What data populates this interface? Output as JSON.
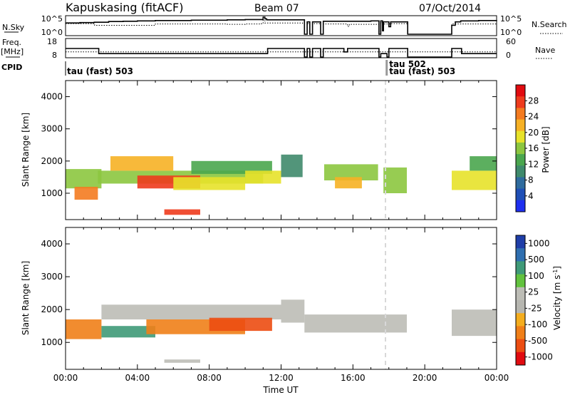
{
  "header": {
    "station": "Kapuskasing (fitACF)",
    "beam": "Beam 07",
    "date": "07/Oct/2014"
  },
  "noise_panel": {
    "left_label": "N.Sky",
    "right_label": "N.Search",
    "left_ticks": [
      "10^5",
      "10^0"
    ],
    "right_ticks": [
      "10^5",
      "10^0"
    ],
    "ylim_log10": [
      0,
      5
    ],
    "sky_series": [
      [
        0.0,
        3.3
      ],
      [
        0.8,
        3.4
      ],
      [
        1.6,
        3.5
      ],
      [
        2.4,
        3.7
      ],
      [
        3.2,
        3.8
      ],
      [
        4.0,
        3.9
      ],
      [
        5.0,
        4.0
      ],
      [
        6.0,
        4.0
      ],
      [
        7.0,
        4.1
      ],
      [
        8.0,
        4.1
      ],
      [
        9.0,
        4.2
      ],
      [
        10.0,
        4.3
      ],
      [
        10.9,
        4.3
      ],
      [
        11.0,
        5.0
      ],
      [
        11.1,
        4.5
      ],
      [
        11.2,
        4.2
      ],
      [
        12.0,
        4.2
      ],
      [
        13.2,
        4.2
      ],
      [
        13.3,
        0.0
      ],
      [
        13.45,
        3.6
      ],
      [
        13.6,
        0.0
      ],
      [
        13.75,
        3.6
      ],
      [
        14.1,
        3.6
      ],
      [
        14.2,
        0.0
      ],
      [
        14.35,
        3.8
      ],
      [
        15.5,
        3.8
      ],
      [
        17.0,
        3.9
      ],
      [
        17.4,
        3.9
      ],
      [
        17.45,
        0.0
      ],
      [
        17.55,
        3.9
      ],
      [
        17.65,
        1.0
      ],
      [
        17.7,
        3.6
      ],
      [
        17.9,
        3.6
      ],
      [
        18.0,
        2.2
      ],
      [
        18.1,
        3.6
      ],
      [
        19.0,
        3.6
      ],
      [
        19.05,
        0.0
      ],
      [
        21.45,
        0.0
      ],
      [
        21.5,
        2.6
      ],
      [
        21.7,
        3.6
      ],
      [
        22.0,
        3.9
      ],
      [
        23.0,
        4.0
      ],
      [
        24.0,
        4.1
      ]
    ],
    "search_series": [
      [
        0.0,
        3.1
      ],
      [
        1.6,
        3.1
      ],
      [
        1.62,
        2.6
      ],
      [
        4.0,
        2.6
      ],
      [
        5.0,
        3.0
      ],
      [
        6.0,
        3.0
      ],
      [
        9.0,
        2.9
      ],
      [
        10.0,
        3.0
      ],
      [
        10.9,
        3.1
      ],
      [
        11.0,
        4.1
      ],
      [
        11.1,
        3.3
      ],
      [
        13.2,
        3.2
      ],
      [
        13.3,
        0.0
      ],
      [
        13.45,
        3.1
      ],
      [
        13.6,
        0.0
      ],
      [
        13.75,
        3.1
      ],
      [
        14.1,
        3.1
      ],
      [
        14.2,
        0.0
      ],
      [
        14.35,
        3.0
      ],
      [
        15.6,
        3.0
      ],
      [
        15.7,
        2.3
      ],
      [
        15.8,
        2.9
      ],
      [
        17.4,
        2.9
      ],
      [
        17.45,
        0.0
      ],
      [
        17.55,
        3.4
      ],
      [
        17.65,
        1.0
      ],
      [
        17.7,
        3.0
      ],
      [
        18.1,
        3.1
      ],
      [
        19.0,
        3.1
      ],
      [
        19.05,
        0.0
      ],
      [
        21.45,
        0.0
      ],
      [
        21.5,
        3.0
      ],
      [
        24.0,
        3.2
      ]
    ]
  },
  "freq_panel": {
    "left_label": "Freq.",
    "left_unit": "[MHz]",
    "right_label": "Nave",
    "left_ticks": [
      "18",
      "8"
    ],
    "right_ticks": [
      "60",
      "0"
    ],
    "ylim_mhz": [
      8,
      18
    ],
    "nave_ylim": [
      0,
      60
    ],
    "freq_series": [
      [
        0.0,
        13.0
      ],
      [
        1.8,
        13.0
      ],
      [
        1.85,
        10.0
      ],
      [
        11.2,
        10.0
      ],
      [
        11.25,
        13.0
      ],
      [
        13.2,
        13.0
      ],
      [
        13.3,
        8.0
      ],
      [
        13.45,
        13.0
      ],
      [
        13.6,
        8.0
      ],
      [
        13.75,
        13.0
      ],
      [
        14.1,
        13.0
      ],
      [
        14.2,
        8.0
      ],
      [
        14.35,
        13.0
      ],
      [
        15.4,
        13.0
      ],
      [
        15.5,
        11.0
      ],
      [
        15.7,
        13.0
      ],
      [
        17.4,
        13.0
      ],
      [
        17.45,
        8.0
      ],
      [
        17.55,
        10.0
      ],
      [
        17.8,
        10.0
      ],
      [
        17.9,
        8.0
      ],
      [
        18.0,
        13.0
      ],
      [
        19.0,
        13.0
      ],
      [
        19.05,
        8.0
      ],
      [
        21.45,
        8.0
      ],
      [
        21.5,
        13.0
      ],
      [
        22.0,
        13.0
      ],
      [
        22.05,
        10.0
      ],
      [
        24.0,
        10.0
      ]
    ],
    "nave_value": 18
  },
  "cpid": {
    "label": "CPID",
    "entries": [
      {
        "t": 0.0,
        "text": "tau (fast) 503",
        "row": "lower"
      },
      {
        "t": 17.9,
        "text": "tau 502",
        "row": "upper"
      },
      {
        "t": 17.9,
        "text": "tau (fast) 503",
        "row": "lower"
      }
    ],
    "marker_times": [
      17.9
    ]
  },
  "colors": {
    "power_scale": [
      "#1e2ff0",
      "#1f4fb6",
      "#2f6b9e",
      "#3f8a6c",
      "#4aa64e",
      "#8cc63f",
      "#e7e22a",
      "#f6b125",
      "#f47b20",
      "#ee3b1d",
      "#e10b10"
    ],
    "velocity_scale": [
      "#1f3ea8",
      "#2f6fb0",
      "#3f9a78",
      "#62c23e",
      "#bdbdb6",
      "#b6b6b0",
      "#f4ad1e",
      "#f07f18",
      "#ec4d12",
      "#e10b10"
    ],
    "line": "#000000",
    "dashed_marker": "#cccccc"
  },
  "chart_data": [
    {
      "type": "heatmap",
      "name": "power",
      "ylabel": "Slant Range [km]",
      "xlim_hours": [
        0,
        24
      ],
      "ylim_km": [
        180,
        4500
      ],
      "yticks": [
        "1000",
        "2000",
        "3000",
        "4000"
      ],
      "colorbar": {
        "label": "Power [dB]",
        "ticks": [
          "28",
          "24",
          "20",
          "16",
          "12",
          "8",
          "4"
        ],
        "range": [
          0,
          30
        ]
      },
      "regions": [
        {
          "t": [
            0.0,
            2.0
          ],
          "r": [
            1150,
            1750
          ],
          "v": 14
        },
        {
          "t": [
            0.5,
            1.8
          ],
          "r": [
            800,
            1200
          ],
          "v": 24
        },
        {
          "t": [
            1.8,
            11.0
          ],
          "r": [
            1300,
            1700
          ],
          "v": 16
        },
        {
          "t": [
            4.0,
            7.5
          ],
          "r": [
            1150,
            1550
          ],
          "v": 27
        },
        {
          "t": [
            2.5,
            6.0
          ],
          "r": [
            1700,
            2150
          ],
          "v": 20
        },
        {
          "t": [
            6.0,
            10.0
          ],
          "r": [
            1100,
            1500
          ],
          "v": 18
        },
        {
          "t": [
            7.0,
            11.5
          ],
          "r": [
            1600,
            2000
          ],
          "v": 13
        },
        {
          "t": [
            5.5,
            7.5
          ],
          "r": [
            330,
            500
          ],
          "v": 28
        },
        {
          "t": [
            10.0,
            12.0
          ],
          "r": [
            1300,
            1700
          ],
          "v": 17
        },
        {
          "t": [
            12.0,
            13.2
          ],
          "r": [
            1500,
            2200
          ],
          "v": 9
        },
        {
          "t": [
            14.4,
            17.4
          ],
          "r": [
            1400,
            1900
          ],
          "v": 15
        },
        {
          "t": [
            15.0,
            16.5
          ],
          "r": [
            1150,
            1500
          ],
          "v": 20
        },
        {
          "t": [
            17.7,
            19.0
          ],
          "r": [
            1000,
            1800
          ],
          "v": 15
        },
        {
          "t": [
            21.5,
            24.0
          ],
          "r": [
            1100,
            1700
          ],
          "v": 18
        },
        {
          "t": [
            22.5,
            24.0
          ],
          "r": [
            1700,
            2150
          ],
          "v": 13
        }
      ]
    },
    {
      "type": "heatmap",
      "name": "velocity",
      "xlabel": "Time UT",
      "ylabel": "Slant Range [km]",
      "xlim_hours": [
        0,
        24
      ],
      "ylim_km": [
        180,
        4500
      ],
      "xticks": [
        "00:00",
        "04:00",
        "08:00",
        "12:00",
        "16:00",
        "20:00",
        "00:00"
      ],
      "yticks": [
        "1000",
        "2000",
        "3000",
        "4000"
      ],
      "colorbar": {
        "label": "Velocity [m s",
        "label_sup": "-1",
        "label_close": "]",
        "ticks": [
          "1000",
          "500",
          "100",
          "25",
          "-25",
          "-100",
          "-500",
          "-1000"
        ]
      },
      "regions": [
        {
          "t": [
            0.0,
            2.0
          ],
          "r": [
            1100,
            1700
          ],
          "c": 7
        },
        {
          "t": [
            2.0,
            12.0
          ],
          "r": [
            1700,
            2150
          ],
          "c": 4
        },
        {
          "t": [
            2.0,
            5.0
          ],
          "r": [
            1150,
            1500
          ],
          "c": 2
        },
        {
          "t": [
            4.5,
            10.0
          ],
          "r": [
            1250,
            1700
          ],
          "c": 7
        },
        {
          "t": [
            8.0,
            11.5
          ],
          "r": [
            1350,
            1750
          ],
          "c": 8
        },
        {
          "t": [
            5.5,
            7.5
          ],
          "r": [
            380,
            480
          ],
          "c": 4
        },
        {
          "t": [
            12.0,
            13.3
          ],
          "r": [
            1600,
            2300
          ],
          "c": 4
        },
        {
          "t": [
            13.3,
            19.0
          ],
          "r": [
            1300,
            1850
          ],
          "c": 4
        },
        {
          "t": [
            21.5,
            24.0
          ],
          "r": [
            1200,
            2000
          ],
          "c": 4
        }
      ]
    }
  ]
}
